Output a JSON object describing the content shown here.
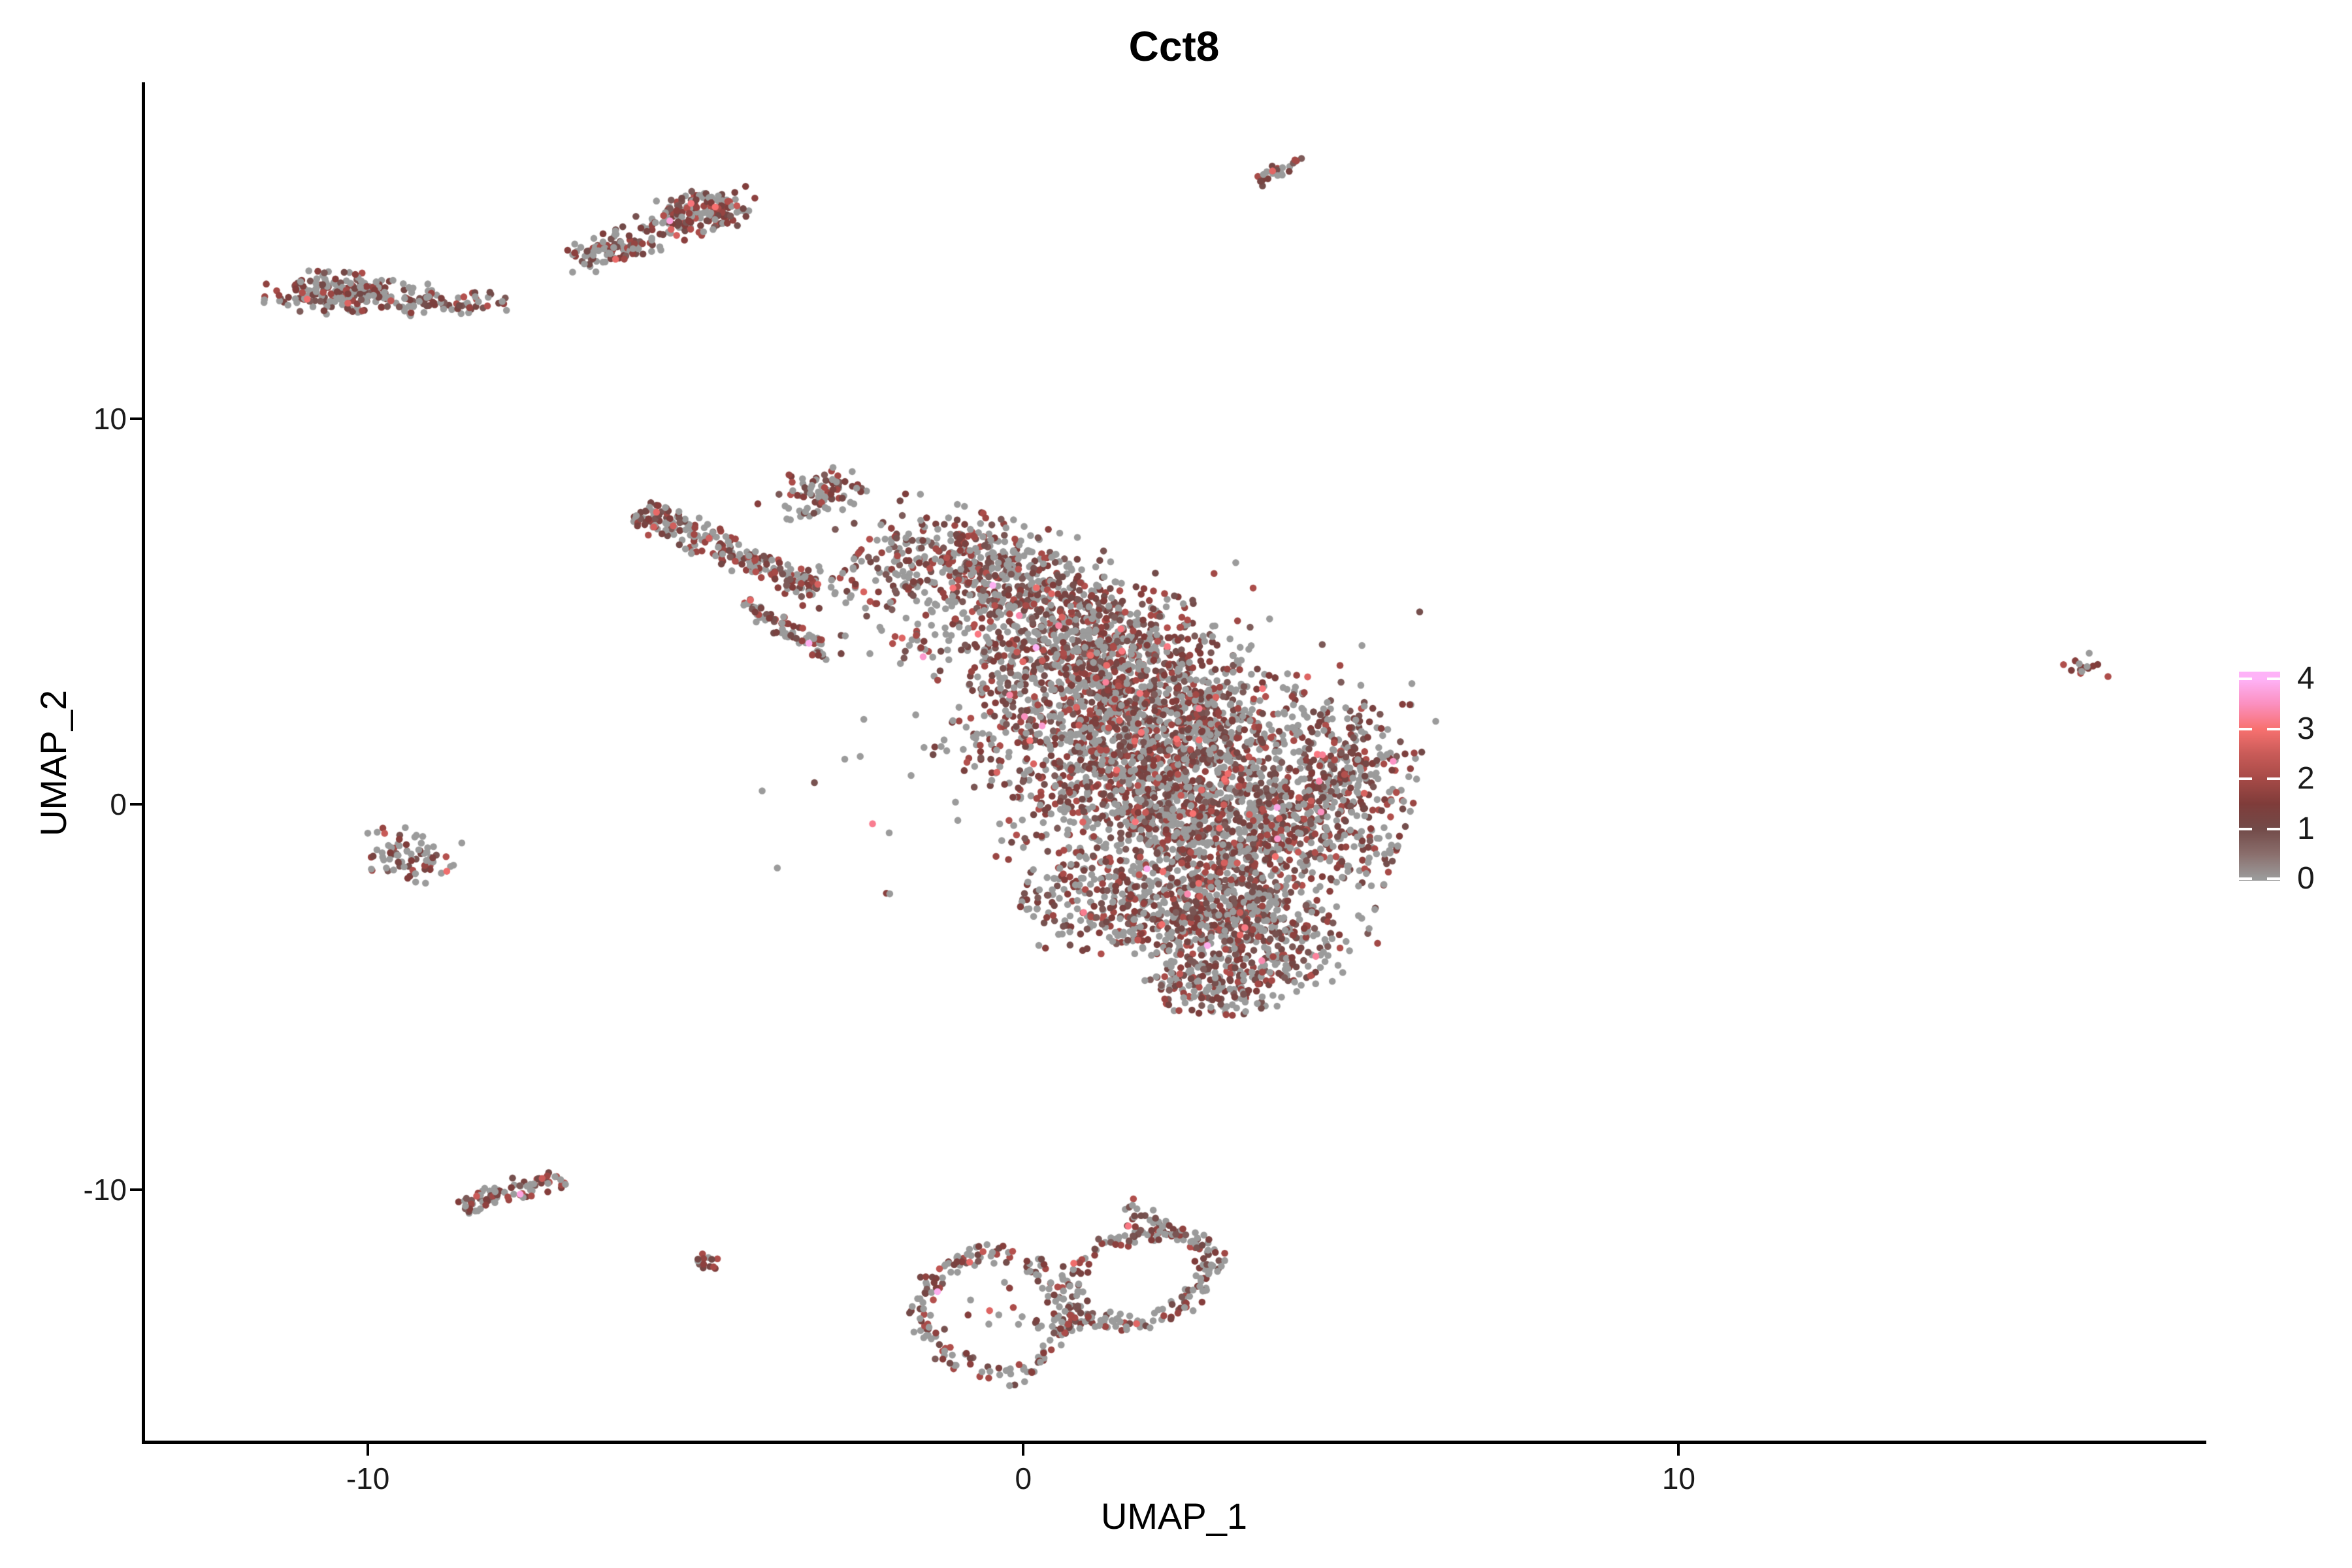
{
  "title": {
    "text": "Cct8"
  },
  "axes": {
    "x": {
      "title": "UMAP_1",
      "tick_labels": [
        "-10",
        "0",
        "10"
      ],
      "tick_values": [
        -10,
        0,
        10
      ]
    },
    "y": {
      "title": "UMAP_2",
      "tick_labels": [
        "10",
        "0",
        "-10"
      ],
      "tick_values": [
        10,
        0,
        -10
      ]
    }
  },
  "legend": {
    "tick_labels": [
      "4",
      "3",
      "2",
      "1",
      "0"
    ],
    "tick_values": [
      4,
      3,
      2,
      1,
      0
    ],
    "low_color": "#9B9B9B",
    "high_color": "#FEB3F8"
  },
  "chart_data": {
    "type": "scatter",
    "title": "Cct8",
    "xlabel": "UMAP_1",
    "ylabel": "UMAP_2",
    "xlim": [
      -13.4,
      18.0
    ],
    "ylim": [
      -16.5,
      18.7
    ],
    "x_ticks": [
      -10,
      0,
      10
    ],
    "y_ticks": [
      -10,
      0,
      10
    ],
    "grid": false,
    "legend_position": "right",
    "point_radius_px": 5.3,
    "seed": 20240613,
    "colorbar": {
      "min": 0,
      "max": 4,
      "ticks": [
        0,
        1,
        2,
        3,
        4
      ],
      "stops": [
        [
          0,
          "#9B9B9B"
        ],
        [
          0.5,
          "#8A6E6C"
        ],
        [
          1,
          "#724A48"
        ],
        [
          1.5,
          "#7F3C3A"
        ],
        [
          2,
          "#A64A47"
        ],
        [
          2.5,
          "#C95B58"
        ],
        [
          3,
          "#F87170"
        ],
        [
          3.5,
          "#FB90C0"
        ],
        [
          4,
          "#FEB3F8"
        ]
      ]
    },
    "value_model": {
      "mid_low": 0.75,
      "mid_span": 1.45,
      "hi_chance": 0.03,
      "very_hi_chance": 0.006
    },
    "clusters": [
      {
        "name": "top-streak",
        "type": "streak",
        "x1": 3.58,
        "y1": 16.1,
        "x2": 4.28,
        "y2": 16.85,
        "width": 0.14,
        "count": 24,
        "gray": 0.25
      },
      {
        "name": "comet-head",
        "type": "blob",
        "cx": -4.95,
        "cy": 15.35,
        "rx": 0.85,
        "ry": 0.5,
        "angle": 25,
        "count": 175,
        "gray": 0.42
      },
      {
        "name": "comet-tail",
        "type": "blob",
        "cx": -6.25,
        "cy": 14.45,
        "rx": 0.85,
        "ry": 0.4,
        "angle": 30,
        "count": 105,
        "gray": 0.5
      },
      {
        "name": "west-bar-dense",
        "type": "blob",
        "cx": -10.3,
        "cy": 13.25,
        "rx": 1.15,
        "ry": 0.5,
        "angle": -4,
        "count": 215,
        "gray": 0.48
      },
      {
        "name": "west-bar-trail",
        "type": "blob",
        "cx": -8.7,
        "cy": 13.05,
        "rx": 1.0,
        "ry": 0.28,
        "angle": -3,
        "count": 60,
        "gray": 0.52
      },
      {
        "name": "hook",
        "type": "blob",
        "cx": -3.05,
        "cy": 8.0,
        "rx": 0.62,
        "ry": 0.68,
        "angle": -20,
        "count": 85,
        "gray": 0.4
      },
      {
        "name": "arm",
        "type": "streak",
        "x1": -5.85,
        "y1": 7.6,
        "x2": -3.1,
        "y2": 5.6,
        "width": 0.38,
        "count": 235,
        "gray": 0.42
      },
      {
        "name": "arm-streak-b",
        "type": "streak",
        "x1": -4.25,
        "y1": 5.25,
        "x2": -3.0,
        "y2": 3.9,
        "width": 0.2,
        "count": 70,
        "gray": 0.42
      },
      {
        "name": "bridge",
        "type": "blob",
        "cx": -2.1,
        "cy": 5.4,
        "rx": 1.15,
        "ry": 1.35,
        "angle": 0,
        "count": 80,
        "gray": 0.5
      },
      {
        "name": "main-1",
        "type": "blob",
        "cx": -0.6,
        "cy": 6.2,
        "rx": 1.7,
        "ry": 1.15,
        "angle": -25,
        "count": 430,
        "gray": 0.45
      },
      {
        "name": "main-2",
        "type": "blob",
        "cx": 0.9,
        "cy": 4.2,
        "rx": 2.2,
        "ry": 1.5,
        "angle": -22,
        "count": 860,
        "gray": 0.45
      },
      {
        "name": "main-3",
        "type": "blob",
        "cx": 1.9,
        "cy": 1.8,
        "rx": 2.7,
        "ry": 1.9,
        "angle": -15,
        "count": 1260,
        "gray": 0.45
      },
      {
        "name": "main-4",
        "type": "blob",
        "cx": 2.8,
        "cy": -0.5,
        "rx": 2.7,
        "ry": 1.7,
        "angle": -12,
        "count": 1120,
        "gray": 0.45
      },
      {
        "name": "main-5",
        "type": "blob",
        "cx": 2.2,
        "cy": -2.6,
        "rx": 2.0,
        "ry": 1.3,
        "angle": -10,
        "count": 560,
        "gray": 0.45
      },
      {
        "name": "main-lobe-se",
        "type": "blob",
        "cx": 3.6,
        "cy": -3.3,
        "rx": 1.5,
        "ry": 1.1,
        "angle": -35,
        "count": 330,
        "gray": 0.45
      },
      {
        "name": "main-tip-s",
        "type": "blob",
        "cx": 2.9,
        "cy": -4.7,
        "rx": 0.95,
        "ry": 0.75,
        "angle": 0,
        "count": 190,
        "gray": 0.4
      },
      {
        "name": "main-east",
        "type": "blob",
        "cx": 4.9,
        "cy": 0.8,
        "rx": 0.95,
        "ry": 1.7,
        "angle": -5,
        "count": 260,
        "gray": 0.45
      },
      {
        "name": "main-halo",
        "type": "blob",
        "cx": 1.3,
        "cy": 1.8,
        "rx": 4.3,
        "ry": 4.4,
        "angle": -15,
        "count": 210,
        "gray": 0.5
      },
      {
        "name": "west-blob",
        "type": "blob",
        "cx": -9.38,
        "cy": -1.3,
        "rx": 0.68,
        "ry": 0.62,
        "angle": -10,
        "count": 78,
        "gray": 0.5
      },
      {
        "name": "far-east-dot",
        "type": "blob",
        "cx": 16.2,
        "cy": 3.62,
        "rx": 0.34,
        "ry": 0.3,
        "angle": -35,
        "count": 14,
        "gray": 0.45
      },
      {
        "name": "sw-band",
        "type": "streak",
        "x1": -8.6,
        "y1": -10.35,
        "x2": -7.0,
        "y2": -9.7,
        "width": 0.28,
        "count": 80,
        "gray": 0.45
      },
      {
        "name": "sw-dot",
        "type": "blob",
        "cx": -4.78,
        "cy": -11.9,
        "rx": 0.26,
        "ry": 0.22,
        "angle": 0,
        "count": 14,
        "gray": 0.15
      },
      {
        "name": "ring-left",
        "type": "ring",
        "cx": -0.45,
        "cy": -13.2,
        "rx": 1.05,
        "ry": 1.55,
        "angle": 5,
        "band": 0.2,
        "count": 175,
        "gray": 0.5
      },
      {
        "name": "ring-left-inner",
        "type": "blob",
        "cx": -0.45,
        "cy": -13.1,
        "rx": 0.5,
        "ry": 0.7,
        "angle": 0,
        "count": 10,
        "gray": 0.6
      },
      {
        "name": "ring-right",
        "type": "ring",
        "cx": 1.75,
        "cy": -12.3,
        "rx": 1.3,
        "ry": 0.95,
        "angle": 50,
        "band": 0.22,
        "count": 215,
        "gray": 0.5
      },
      {
        "name": "ring-right-stem",
        "type": "blob",
        "cx": 1.85,
        "cy": -10.75,
        "rx": 0.38,
        "ry": 0.5,
        "angle": 20,
        "count": 30,
        "gray": 0.45
      },
      {
        "name": "ring-bridge",
        "type": "blob",
        "cx": 0.55,
        "cy": -13.5,
        "rx": 0.33,
        "ry": 0.26,
        "angle": 0,
        "count": 16,
        "gray": 0.5
      }
    ],
    "highlight_points": [
      {
        "x": 2.81,
        "y": -3.66,
        "v": 3.9
      },
      {
        "x": 3.64,
        "y": -4.05,
        "v": 3.4
      },
      {
        "x": 0.92,
        "y": -2.8,
        "v": 3.2
      },
      {
        "x": -0.69,
        "y": 4.42,
        "v": 3.1
      },
      {
        "x": 0.54,
        "y": 4.64,
        "v": 3.3
      },
      {
        "x": 2.34,
        "y": 1.7,
        "v": 3.0
      },
      {
        "x": -4.7,
        "y": 15.5,
        "v": 3.0
      },
      {
        "x": -2.3,
        "y": -0.5,
        "v": 3.2
      },
      {
        "x": 0.77,
        "y": -11.9,
        "v": 2.9
      },
      {
        "x": -4.05,
        "y": 7.8,
        "v": 1.6
      },
      {
        "x": -7.95,
        "y": 13.05,
        "v": 0.0
      },
      {
        "x": 16.55,
        "y": 3.32,
        "v": 2.1
      }
    ]
  }
}
